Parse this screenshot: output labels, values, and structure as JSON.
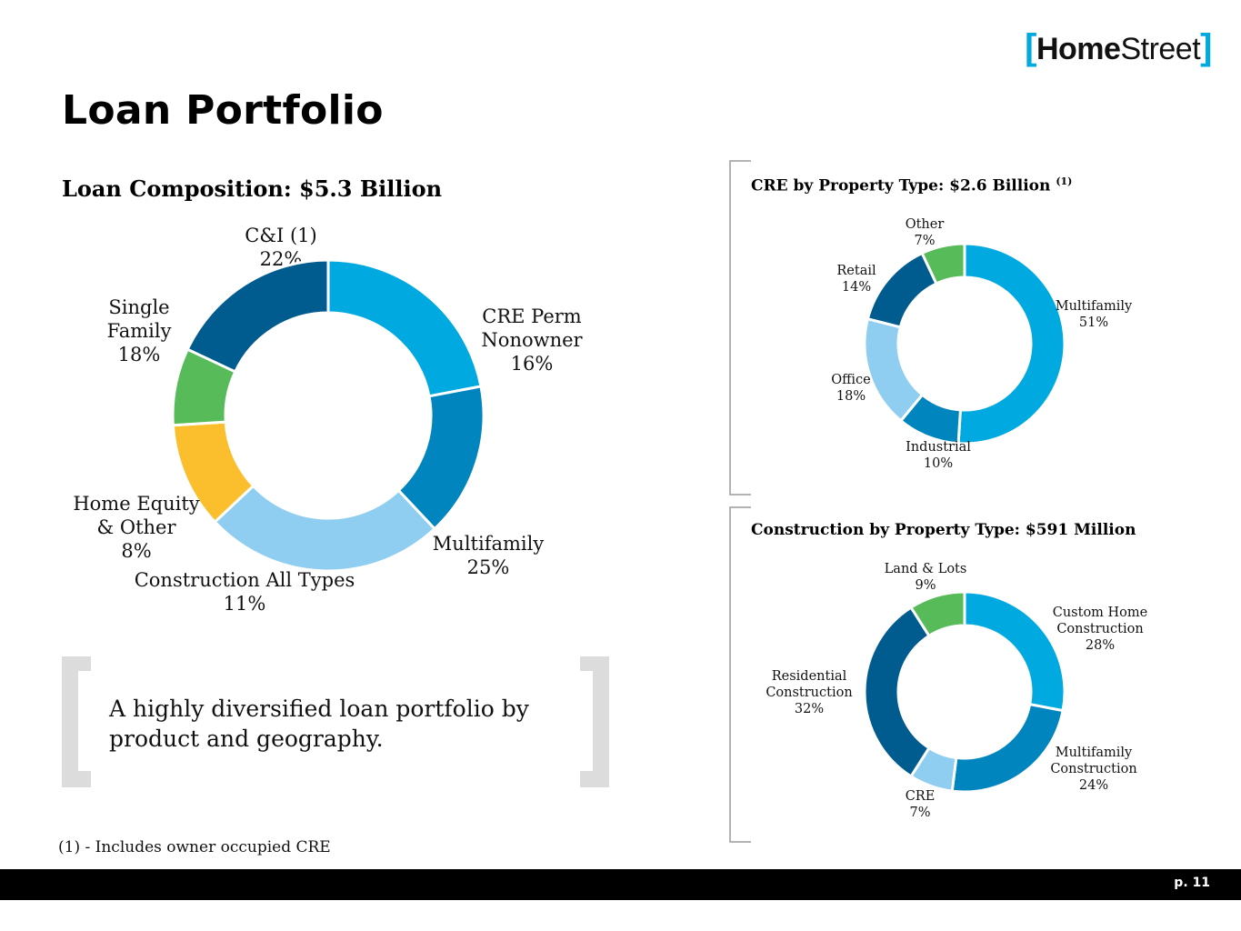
{
  "logo": {
    "left_bracket": "[",
    "part1": "Home",
    "part2": "Street",
    "right_bracket": "]"
  },
  "page_title": "Loan Portfolio",
  "quote": "A highly diversified loan portfolio by product and geography.",
  "footnote": "(1) - Includes owner occupied CRE",
  "page_number": "p. 11",
  "colors": {
    "blue": "#00a9e0",
    "mid_blue": "#0085be",
    "dark_blue": "#005b8f",
    "light_blue": "#90cef1",
    "green": "#58bb5a",
    "yellow": "#fbbf2e",
    "bracket_gray": "#dcdcdc"
  },
  "chart_data": [
    {
      "type": "pie",
      "title": "Loan Composition: $5.3 Billion",
      "slices": [
        {
          "label": "C&I (1)",
          "value": 22,
          "color": "#00a9e0"
        },
        {
          "label": "CRE Perm Nonowner",
          "value": 16,
          "color": "#0085be"
        },
        {
          "label": "Multifamily",
          "value": 25,
          "color": "#90cef1"
        },
        {
          "label": "Construction All Types",
          "value": 11,
          "color": "#fbbf2e"
        },
        {
          "label": "Home Equity & Other",
          "value": 8,
          "color": "#58bb5a"
        },
        {
          "label": "Single Family",
          "value": 18,
          "color": "#005b8f"
        }
      ]
    },
    {
      "type": "pie",
      "title": "CRE by Property Type: $2.6 Billion",
      "title_note": "(1)",
      "slices": [
        {
          "label": "Multifamily",
          "value": 51,
          "color": "#00a9e0"
        },
        {
          "label": "Industrial",
          "value": 10,
          "color": "#0085be"
        },
        {
          "label": "Office",
          "value": 18,
          "color": "#90cef1"
        },
        {
          "label": "Retail",
          "value": 14,
          "color": "#005b8f"
        },
        {
          "label": "Other",
          "value": 7,
          "color": "#58bb5a"
        }
      ]
    },
    {
      "type": "pie",
      "title": "Construction by Property Type: $591 Million",
      "slices": [
        {
          "label": "Custom Home Construction",
          "value": 28,
          "color": "#00a9e0"
        },
        {
          "label": "Multifamily Construction",
          "value": 24,
          "color": "#0085be"
        },
        {
          "label": "CRE",
          "value": 7,
          "color": "#90cef1"
        },
        {
          "label": "Residential Construction",
          "value": 32,
          "color": "#005b8f"
        },
        {
          "label": "Land & Lots",
          "value": 9,
          "color": "#58bb5a"
        }
      ]
    }
  ]
}
